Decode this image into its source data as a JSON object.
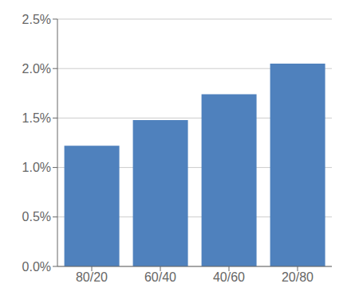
{
  "chart_data": {
    "type": "bar",
    "categories": [
      "80/20",
      "60/40",
      "40/60",
      "20/80"
    ],
    "values": [
      0.0122,
      0.0148,
      0.0174,
      0.0205
    ],
    "color": "#4F81BD",
    "ylim": [
      0.0,
      0.025
    ],
    "yticks": [
      {
        "value": 0.0,
        "label": "0.0%"
      },
      {
        "value": 0.005,
        "label": "0.5%"
      },
      {
        "value": 0.01,
        "label": "1.0%"
      },
      {
        "value": 0.015,
        "label": "1.5%"
      },
      {
        "value": 0.02,
        "label": "2.0%"
      },
      {
        "value": 0.025,
        "label": "2.5%"
      }
    ],
    "grid": true
  }
}
